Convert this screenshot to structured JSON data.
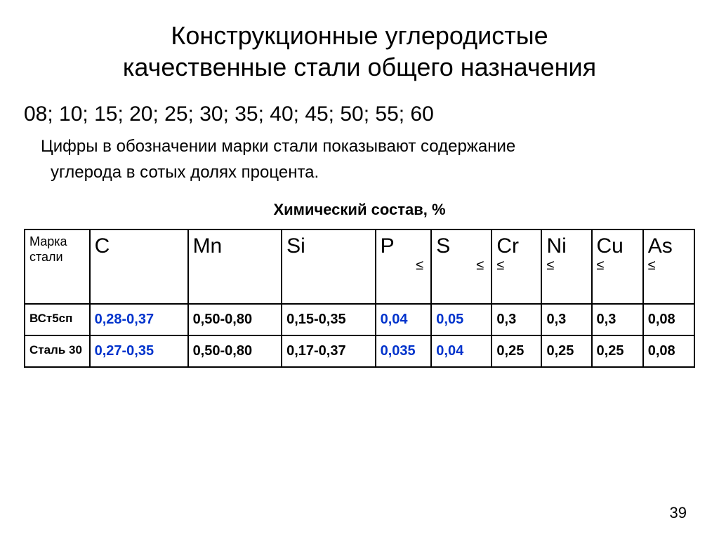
{
  "title_line1": "Конструкционные углеродистые",
  "title_line2": "качественные стали общего назначения",
  "grades_line": "08; 10; 15; 20; 25; 30; 35; 40; 45; 50; 55; 60",
  "note_line1": "Цифры в обозначении марки стали показывают содержание",
  "note_line2": "углерода в сотых долях процента.",
  "table": {
    "caption": "Химический состав, %",
    "header": {
      "col0": {
        "l1": "Марка",
        "l2": "стали"
      },
      "col1": {
        "sym": "C"
      },
      "col2": {
        "sym": "Mn"
      },
      "col3": {
        "sym": "Si"
      },
      "col4": {
        "sym": "P",
        "le": "≤"
      },
      "col5": {
        "sym": "S",
        "le": "≤"
      },
      "col6": {
        "sym": "Cr",
        "le": "≤"
      },
      "col7": {
        "sym": "Ni",
        "le": "≤"
      },
      "col8": {
        "sym": "Cu",
        "le": "≤"
      },
      "col9": {
        "sym": "As",
        "le": "≤"
      }
    },
    "rows": [
      {
        "label": "ВСт5сп",
        "C": {
          "v": "0,28-0,37",
          "blue": true
        },
        "Mn": {
          "v": "0,50-0,80",
          "blue": false
        },
        "Si": {
          "v": "0,15-0,35",
          "blue": false
        },
        "P": {
          "v": "0,04",
          "blue": true
        },
        "S": {
          "v": "0,05",
          "blue": true
        },
        "Cr": {
          "v": "0,3",
          "blue": false
        },
        "Ni": {
          "v": "0,3",
          "blue": false
        },
        "Cu": {
          "v": "0,3",
          "blue": false
        },
        "As": {
          "v": "0,08",
          "blue": false
        }
      },
      {
        "label": "Сталь 30",
        "C": {
          "v": "0,27-0,35",
          "blue": true
        },
        "Mn": {
          "v": "0,50-0,80",
          "blue": false
        },
        "Si": {
          "v": "0,17-0,37",
          "blue": false
        },
        "P": {
          "v": "0,035",
          "blue": true
        },
        "S": {
          "v": "0,04",
          "blue": true
        },
        "Cr": {
          "v": "0,25",
          "blue": false
        },
        "Ni": {
          "v": "0,25",
          "blue": false
        },
        "Cu": {
          "v": "0,25",
          "blue": false
        },
        "As": {
          "v": "0,08",
          "blue": false
        }
      }
    ]
  },
  "page_number": "39",
  "style": {
    "text_color": "#000000",
    "highlight_color": "#0033cc",
    "background_color": "#ffffff",
    "border_color": "#000000",
    "title_fontsize": 36,
    "body_fontsize": 24,
    "grades_fontsize": 30,
    "header_sym_fontsize": 30,
    "cell_fontsize": 20
  }
}
